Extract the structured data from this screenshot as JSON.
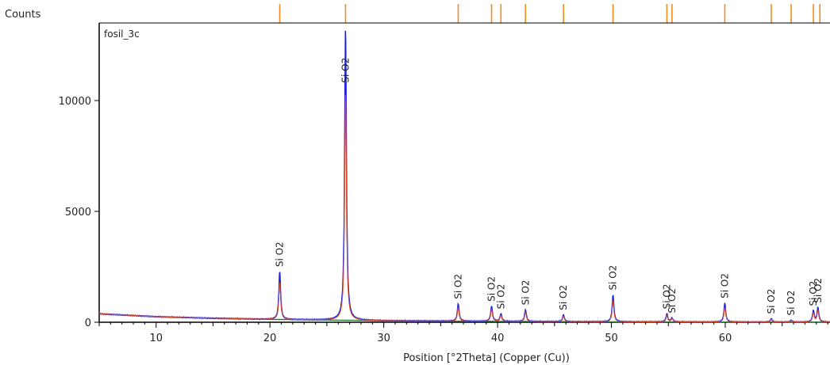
{
  "chart_data": {
    "type": "line",
    "title": "",
    "sample_label": "fosil_3c",
    "ylabel": "Counts",
    "xlabel": "Position [°2Theta] (Copper (Cu))",
    "xlim": [
      5,
      69.2
    ],
    "ylim": [
      0,
      13500
    ],
    "x_ticks": [
      10,
      20,
      30,
      40,
      50,
      60
    ],
    "y_ticks": [
      0,
      5000,
      10000
    ],
    "grid": false,
    "colors": {
      "observed": "#1f1fe0",
      "calculated": "#e0502a",
      "background": "#2f7a3a",
      "reference": "#f28c1a",
      "axis": "#000000"
    },
    "background_curve": [
      [
        5,
        380
      ],
      [
        10,
        250
      ],
      [
        15,
        180
      ],
      [
        20,
        130
      ],
      [
        30,
        70
      ],
      [
        40,
        40
      ],
      [
        50,
        20
      ],
      [
        60,
        10
      ],
      [
        69.2,
        5
      ]
    ],
    "peaks": [
      {
        "x": 20.86,
        "y": 2280
      },
      {
        "x": 26.64,
        "y": 13300
      },
      {
        "x": 36.54,
        "y": 830
      },
      {
        "x": 39.47,
        "y": 720
      },
      {
        "x": 40.29,
        "y": 380
      },
      {
        "x": 42.45,
        "y": 560
      },
      {
        "x": 45.79,
        "y": 330
      },
      {
        "x": 50.14,
        "y": 1230
      },
      {
        "x": 54.87,
        "y": 380
      },
      {
        "x": 55.32,
        "y": 190
      },
      {
        "x": 59.96,
        "y": 860
      },
      {
        "x": 64.04,
        "y": 160
      },
      {
        "x": 65.79,
        "y": 90
      },
      {
        "x": 67.74,
        "y": 520
      },
      {
        "x": 68.14,
        "y": 650
      }
    ],
    "peak_label": "Si O2",
    "reference_lines": [
      20.86,
      26.64,
      36.54,
      39.47,
      40.29,
      42.45,
      45.79,
      50.14,
      54.87,
      55.32,
      59.96,
      64.04,
      65.79,
      67.74,
      68.31
    ]
  }
}
